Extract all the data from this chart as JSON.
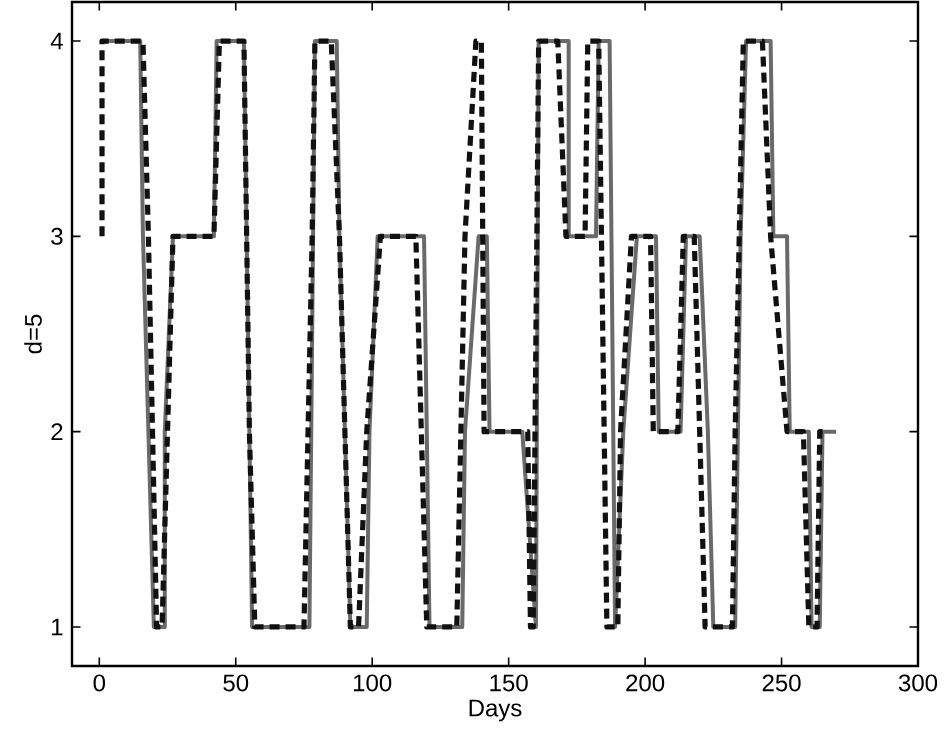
{
  "chart_data": {
    "type": "line",
    "xlabel": "Days",
    "ylabel": "d=5",
    "xlim": [
      -10,
      300
    ],
    "ylim": [
      0.8,
      4.2
    ],
    "xticks": [
      0,
      50,
      100,
      150,
      200,
      250,
      300
    ],
    "yticks": [
      1,
      2,
      3,
      4
    ],
    "marker": "none",
    "series": [
      {
        "color": "#6a6a6a",
        "line_style": "solid",
        "x": [
          2,
          15,
          16,
          20,
          24,
          24,
          27,
          42,
          43,
          53,
          56,
          77,
          79,
          87,
          88,
          90,
          92,
          98,
          99,
          102,
          119,
          120,
          121,
          133,
          134,
          139,
          142,
          143,
          155,
          160,
          161,
          172,
          172,
          182,
          183,
          187,
          189,
          192,
          197,
          204,
          205,
          213,
          215,
          220,
          223,
          225,
          233,
          235,
          237,
          246,
          247,
          252,
          253,
          260,
          261,
          264,
          265,
          270
        ],
        "values": [
          4,
          4,
          3,
          1,
          1,
          2,
          3,
          3,
          4,
          4,
          1,
          1,
          4,
          4,
          3,
          2,
          1,
          1,
          2,
          3,
          3,
          2,
          1,
          1,
          2,
          3,
          3,
          2,
          2,
          1,
          4,
          4,
          3,
          3,
          4,
          4,
          1,
          2,
          3,
          3,
          2,
          2,
          3,
          3,
          2,
          1,
          1,
          3,
          4,
          4,
          3,
          3,
          2,
          2,
          1,
          1,
          2,
          2
        ]
      },
      {
        "color": "#111111",
        "line_style": "dashed",
        "x": [
          1,
          1,
          16,
          18,
          21,
          23,
          25,
          27,
          42,
          44,
          53,
          55,
          57,
          75,
          78,
          79,
          85,
          88,
          92,
          95,
          98,
          103,
          116,
          118,
          120,
          131,
          134,
          138,
          140,
          141,
          157,
          158,
          159,
          161,
          168,
          171,
          178,
          179,
          183,
          186,
          190,
          191,
          195,
          202,
          203,
          212,
          214,
          218,
          220,
          222,
          232,
          233,
          236,
          243,
          246,
          252,
          258,
          260,
          263,
          264,
          267
        ],
        "values": [
          3,
          4,
          4,
          3,
          1,
          1,
          2,
          3,
          3,
          4,
          4,
          2,
          1,
          1,
          3,
          4,
          4,
          3,
          1,
          1,
          2,
          3,
          3,
          2,
          1,
          1,
          3,
          4,
          4,
          2,
          2,
          1,
          1,
          4,
          4,
          3,
          3,
          4,
          4,
          1,
          1,
          2,
          3,
          3,
          2,
          2,
          3,
          3,
          2,
          1,
          1,
          2,
          4,
          4,
          3,
          2,
          2,
          1,
          1,
          2,
          2
        ]
      }
    ]
  }
}
